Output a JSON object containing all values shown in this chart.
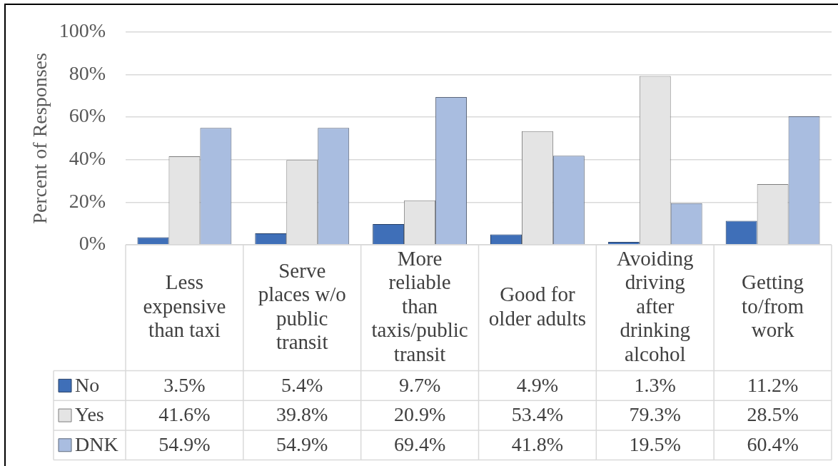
{
  "chart_data": {
    "type": "bar",
    "ylabel": "Percent of Responses",
    "categories": [
      "Less expensive than taxi",
      "Serve places w/o public transit",
      "More reliable than taxis/public transit",
      "Good for older adults",
      "Avoiding driving after drinking alcohol",
      "Getting to/from work"
    ],
    "series": [
      {
        "name": "No",
        "color": "#3f6fb8",
        "values": [
          3.5,
          5.4,
          9.7,
          4.9,
          1.3,
          11.2
        ],
        "value_labels": [
          "3.5%",
          "5.4%",
          "9.7%",
          "4.9%",
          "1.3%",
          "11.2%"
        ]
      },
      {
        "name": "Yes",
        "color": "#e4e4e4",
        "values": [
          41.6,
          39.8,
          20.9,
          53.4,
          79.3,
          28.5
        ],
        "value_labels": [
          "41.6%",
          "39.8%",
          "20.9%",
          "53.4%",
          "79.3%",
          "28.5%"
        ]
      },
      {
        "name": "DNK",
        "color": "#a9bde0",
        "values": [
          54.9,
          54.9,
          69.4,
          41.8,
          19.5,
          60.4
        ],
        "value_labels": [
          "54.9%",
          "54.9%",
          "69.4%",
          "41.8%",
          "19.5%",
          "60.4%"
        ]
      }
    ],
    "ylim": [
      0,
      100
    ],
    "yticks": [
      {
        "value": 0,
        "label": "0%"
      },
      {
        "value": 20,
        "label": "20%"
      },
      {
        "value": 40,
        "label": "40%"
      },
      {
        "value": 60,
        "label": "60%"
      },
      {
        "value": 80,
        "label": "80%"
      },
      {
        "value": 100,
        "label": "100%"
      }
    ],
    "grid": "y",
    "legend": "bottom"
  }
}
